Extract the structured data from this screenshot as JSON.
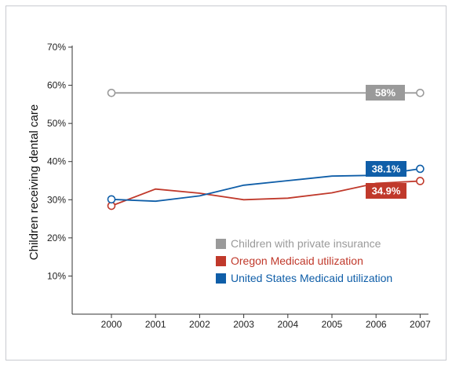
{
  "chart_data": {
    "type": "line",
    "ylabel": "Children receiving dental care",
    "xlabel": "",
    "title": "",
    "categories": [
      "2000",
      "2001",
      "2002",
      "2003",
      "2004",
      "2005",
      "2006",
      "2007"
    ],
    "yticks": [
      "10%",
      "20%",
      "30%",
      "40%",
      "50%",
      "60%",
      "70%"
    ],
    "ylim": [
      0,
      70
    ],
    "grid": false,
    "legend_position": "bottom-right",
    "series": [
      {
        "name": "Children with private insurance",
        "color": "#9a9a9a",
        "x": [
          2000,
          2007
        ],
        "values": [
          58,
          58
        ],
        "end_label": "58%",
        "legend_color": "#9a9a9a"
      },
      {
        "name": "Oregon Medicaid utilization",
        "color": "#c0392b",
        "x": [
          2000,
          2001,
          2002,
          2003,
          2004,
          2005,
          2006,
          2007
        ],
        "values": [
          28.4,
          32.8,
          31.7,
          30.0,
          30.4,
          31.8,
          34.3,
          34.9
        ],
        "end_label": "34.9%",
        "legend_color": "#c0392b"
      },
      {
        "name": "United States Medicaid utilization",
        "color": "#0f5ea8",
        "x": [
          2000,
          2001,
          2002,
          2003,
          2004,
          2005,
          2006,
          2007
        ],
        "values": [
          30.1,
          29.6,
          31.0,
          33.8,
          35.0,
          36.2,
          36.4,
          38.1
        ],
        "end_label": "38.1%",
        "legend_color": "#0f5ea8"
      }
    ]
  }
}
